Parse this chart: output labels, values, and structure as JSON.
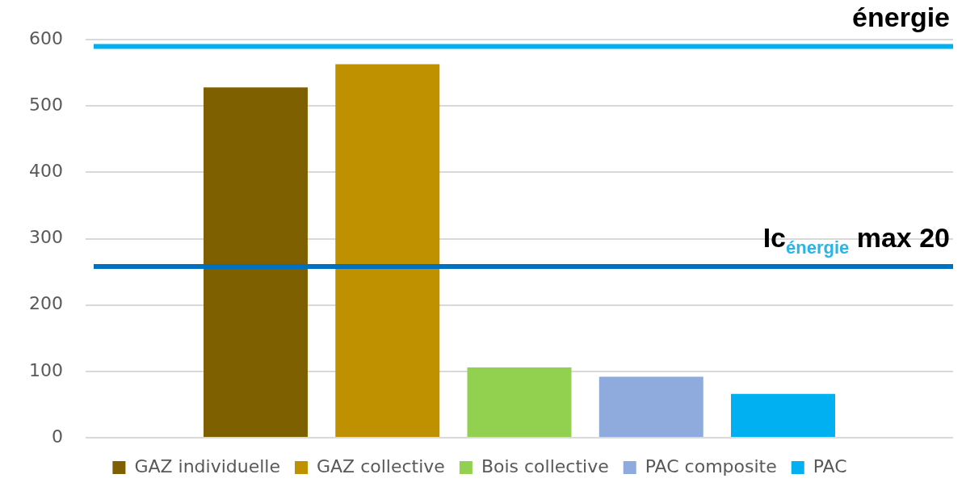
{
  "chart_data": {
    "type": "bar",
    "categories": [
      null
    ],
    "series": [
      {
        "name": "GAZ individuelle",
        "color": "#7f6000",
        "values": [
          528
        ]
      },
      {
        "name": "GAZ collective",
        "color": "#bf9000",
        "values": [
          563
        ]
      },
      {
        "name": "Bois collective",
        "color": "#92d050",
        "values": [
          106
        ]
      },
      {
        "name": "PAC composite",
        "color": "#8faadc",
        "values": [
          92
        ]
      },
      {
        "name": "PAC",
        "color": "#00b0f0",
        "values": [
          66
        ]
      }
    ],
    "ylim": [
      0,
      600
    ],
    "yticks": [
      0,
      100,
      200,
      300,
      400,
      500,
      600
    ],
    "grid": "y",
    "legend": "bottom",
    "ref_lines": [
      {
        "axis": "y",
        "value": 590,
        "label": "énergie",
        "color": "#00b0f0"
      },
      {
        "axis": "y",
        "value": 258,
        "label": "Ic$_{énergie}$ max 20",
        "color": "#0070c0"
      }
    ]
  }
}
